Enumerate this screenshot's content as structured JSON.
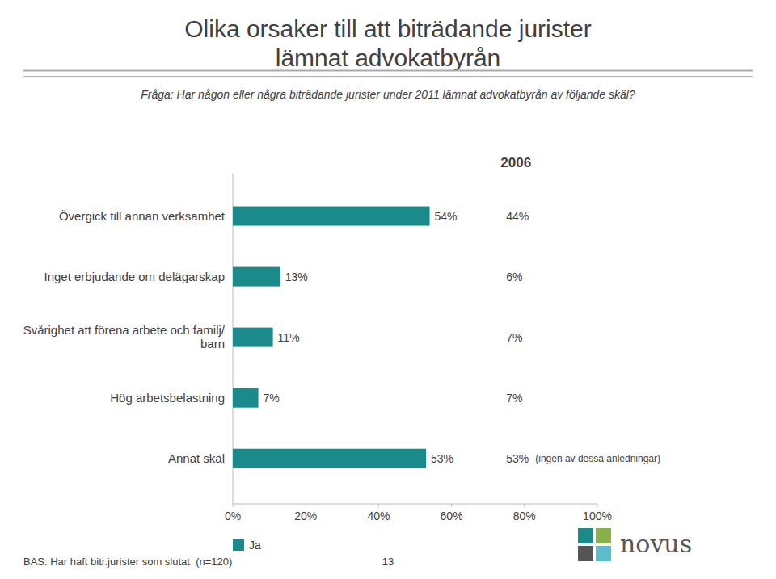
{
  "chart_data": {
    "type": "bar",
    "orientation": "horizontal",
    "title": "Olika orsaker till att biträdande jurister\nlämnat advokatbyrån",
    "subtitle": "Fråga: Har någon eller några biträdande jurister under 2011 lämnat advokatbyrån av följande skäl?",
    "categories": [
      "Övergick till annan verksamhet",
      "Inget erbjudande om delägarskap",
      "Svårighet att förena arbete och familj/\nbarn",
      "Hög arbetsbelastning",
      "Annat skäl"
    ],
    "series": [
      {
        "name": "Ja",
        "color": "#1a8a8a",
        "values": [
          54,
          13,
          11,
          7,
          53
        ],
        "value_labels": [
          "54%",
          "13%",
          "11%",
          "7%",
          "53%"
        ]
      }
    ],
    "comparison": {
      "name": "2006",
      "values": [
        44,
        6,
        7,
        7,
        53
      ],
      "value_labels": [
        "44%",
        "6%",
        "7%",
        "7%",
        "53%"
      ],
      "notes": [
        null,
        null,
        null,
        null,
        "(ingen av dessa anledningar)"
      ]
    },
    "xlim": [
      0,
      100
    ],
    "xticks": [
      {
        "value": 0,
        "label": "0%"
      },
      {
        "value": 20,
        "label": "20%"
      },
      {
        "value": 40,
        "label": "40%"
      },
      {
        "value": 60,
        "label": "60%"
      },
      {
        "value": 80,
        "label": "80%"
      },
      {
        "value": 100,
        "label": "100%"
      }
    ],
    "grid": false,
    "legend": "lower left",
    "data_labels": true,
    "footer": "BAS: Har haft bitr.jurister som slutat  (n=120)",
    "annotations": [
      "13",
      "novus"
    ]
  }
}
